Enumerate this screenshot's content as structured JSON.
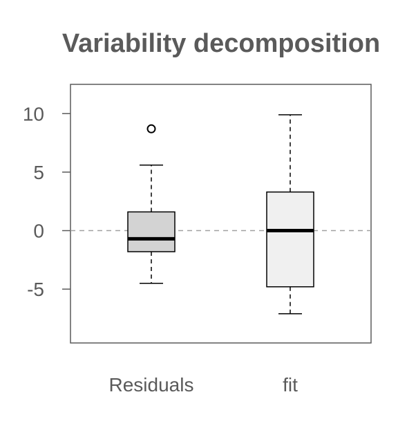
{
  "chart_data": {
    "type": "boxplot",
    "title": "Variability decomposition",
    "xlabel": "",
    "ylabel": "",
    "categories": [
      "Residuals",
      "fit"
    ],
    "ylim": [
      -9.6,
      12.5
    ],
    "yticks": [
      10,
      5,
      0,
      -5
    ],
    "ytick_labels": [
      "10",
      "5",
      "0",
      "-5"
    ],
    "reference_line": {
      "y": 0,
      "style": "dashed",
      "color": "#a0a0a0"
    },
    "grid": false,
    "legend": "none",
    "boxes": [
      {
        "name": "Residuals",
        "whisker_low": -4.5,
        "q1": -1.8,
        "median": -0.7,
        "q3": 1.6,
        "whisker_high": 5.6,
        "outliers": [
          8.7
        ],
        "fill": "#d3d3d3"
      },
      {
        "name": "fit",
        "whisker_low": -7.1,
        "q1": -4.8,
        "median": 0.0,
        "q3": 3.3,
        "whisker_high": 9.9,
        "outliers": [],
        "fill": "#f0f0f0"
      }
    ],
    "colors": {
      "title": "#5a5a5a",
      "axis_text": "#5a5a5a",
      "frame": "#5a5a5a",
      "box_stroke": "#000000",
      "median": "#000000"
    }
  }
}
